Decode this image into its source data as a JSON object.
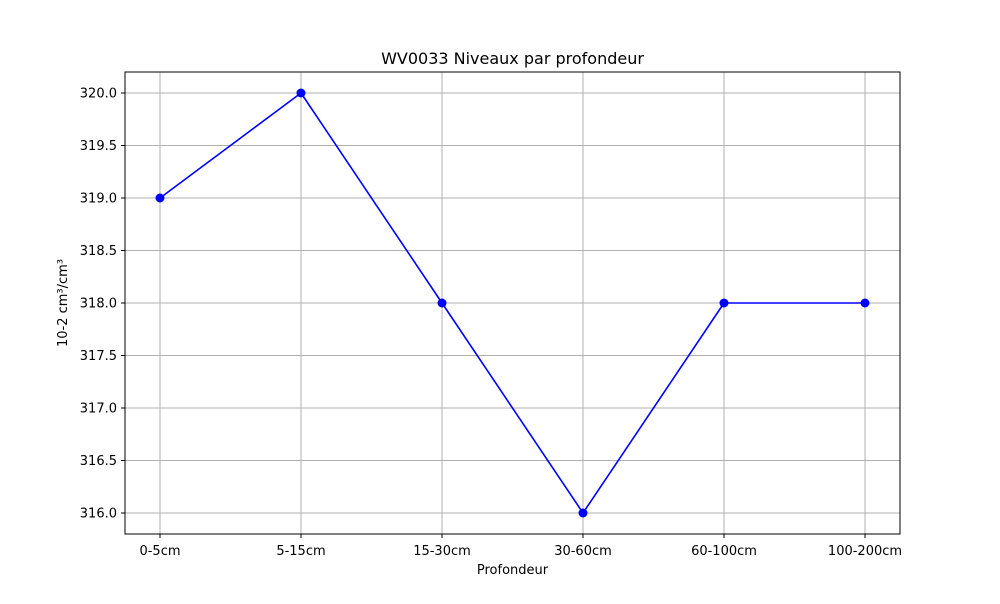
{
  "chart_data": {
    "type": "line",
    "title": "WV0033 Niveaux par profondeur",
    "xlabel": "Profondeur",
    "ylabel": "10-2 cm³/cm³",
    "categories": [
      "0-5cm",
      "5-15cm",
      "15-30cm",
      "30-60cm",
      "60-100cm",
      "100-200cm"
    ],
    "series": [
      {
        "values": [
          319.0,
          320.0,
          318.0,
          316.0,
          318.0,
          318.0
        ]
      }
    ],
    "ylim": [
      315.8,
      320.2
    ],
    "yticks": [
      "316.0",
      "316.5",
      "317.0",
      "317.5",
      "318.0",
      "318.5",
      "319.0",
      "319.5",
      "320.0"
    ],
    "grid": true,
    "marker": "circle",
    "colors": {
      "line": "#0000ff",
      "grid": "#b0b0b0",
      "axes": "#000000"
    }
  }
}
